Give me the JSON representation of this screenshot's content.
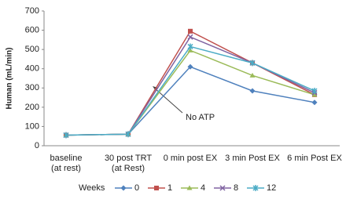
{
  "chart_data": {
    "type": "line",
    "y_label": "Human (mL/min)",
    "categories": [
      "baseline\n(at rest)",
      "30 post TRT\n(at Rest)",
      "0 min post EX",
      "3 min Post EX",
      "6 min Post EX"
    ],
    "series": [
      {
        "name": "0",
        "color": "#4f81bd",
        "values": [
          55,
          60,
          410,
          285,
          225
        ]
      },
      {
        "name": "1",
        "color": "#c0504d",
        "values": [
          55,
          60,
          595,
          430,
          265
        ]
      },
      {
        "name": "4",
        "color": "#9bbb59",
        "values": [
          55,
          60,
          495,
          365,
          265
        ]
      },
      {
        "name": "8",
        "color": "#8064a2",
        "values": [
          55,
          60,
          565,
          430,
          275
        ]
      },
      {
        "name": "12",
        "color": "#4bacc6",
        "values": [
          55,
          60,
          515,
          430,
          285
        ]
      }
    ],
    "ylim": [
      0,
      700
    ],
    "yticks": [
      0,
      100,
      200,
      300,
      400,
      500,
      600,
      700
    ],
    "legend_title": "Weeks",
    "annotation": "No ATP"
  }
}
